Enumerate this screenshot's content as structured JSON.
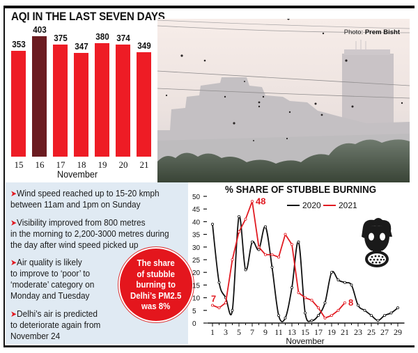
{
  "aqi_chart": {
    "title": "AQI IN THE LAST SEVEN DAYS",
    "xlabel": "November",
    "bars": [
      {
        "day": "15",
        "value": "353"
      },
      {
        "day": "16",
        "value": "403"
      },
      {
        "day": "17",
        "value": "375"
      },
      {
        "day": "18",
        "value": "347"
      },
      {
        "day": "19",
        "value": "380"
      },
      {
        "day": "20",
        "value": "374"
      },
      {
        "day": "21",
        "value": "349"
      }
    ],
    "highlight_day": "16",
    "colors": {
      "bar": "#ee1c25",
      "highlight": "#6b1b20"
    }
  },
  "photo": {
    "credit_prefix": "Photo:",
    "credit_name": "Prem Bisht"
  },
  "info": {
    "bullets": [
      "Wind speed reached up to 15-20 kmph between 11am and 1pm on Sunday",
      "Visibility improved from 800 metres in the morning to 2,200-3000 metres during the day after wind speed picked up",
      "Air quality is likely to improve to ‘poor’ to ‘moderate’ category on Monday and Tuesday",
      "Delhi’s air is predicted to deteriorate again from November 24"
    ],
    "bullet_lines": [
      [
        "Wind speed reached up to 15-20 kmph",
        "between 11am and 1pm on Sunday"
      ],
      [
        "Visibility improved from 800 metres",
        "in the morning to 2,200-3000 metres during",
        "the day after wind speed picked up"
      ],
      [
        "Air quality is likely",
        "to improve to ‘poor’ to",
        "‘moderate’ category on",
        "Monday and Tuesday"
      ],
      [
        "Delhi’s air is predicted",
        "to deteriorate again from",
        "November 24"
      ]
    ],
    "callout_lines": [
      "The share",
      "of stubble",
      "burning to",
      "Delhi’s PM2.5",
      "was 8%"
    ]
  },
  "stubble_chart": {
    "title": "% SHARE OF STUBBLE BURNING",
    "xlabel": "November",
    "legend": [
      {
        "label": "2020",
        "color": "#111111"
      },
      {
        "label": "2021",
        "color": "#e11b22"
      }
    ],
    "y_ticks": [
      "0",
      "5",
      "10",
      "15",
      "20",
      "25",
      "30",
      "35",
      "40",
      "45",
      "50"
    ],
    "x_ticks": [
      "1",
      "3",
      "5",
      "7",
      "9",
      "11",
      "13",
      "15",
      "17",
      "19",
      "21",
      "23",
      "25",
      "27",
      "29"
    ],
    "annotations": [
      {
        "text": "7",
        "series": "2021",
        "day": 1
      },
      {
        "text": "48",
        "series": "2021",
        "day": 7
      },
      {
        "text": "8",
        "series": "2021",
        "day": 21
      }
    ]
  },
  "chart_data": [
    {
      "type": "bar",
      "title": "AQI IN THE LAST SEVEN DAYS",
      "categories": [
        "15",
        "16",
        "17",
        "18",
        "19",
        "20",
        "21"
      ],
      "values": [
        353,
        403,
        375,
        347,
        380,
        374,
        349
      ],
      "xlabel": "November",
      "ylabel": "",
      "highlight": "16",
      "data_labels": true,
      "grid": false
    },
    {
      "type": "line",
      "title": "% SHARE OF STUBBLE BURNING",
      "xlabel": "November",
      "ylabel": "",
      "ylim": [
        0,
        50
      ],
      "xlim": [
        1,
        29
      ],
      "legend_position": "top",
      "grid": false,
      "series": [
        {
          "name": "2020",
          "color": "#111111",
          "x": [
            1,
            2,
            3,
            4,
            5,
            6,
            7,
            8,
            9,
            10,
            11,
            12,
            13,
            14,
            15,
            16,
            17,
            18,
            19,
            20,
            21,
            22,
            23,
            24,
            25,
            26,
            27,
            28,
            29
          ],
          "values": [
            39,
            16,
            10,
            5,
            42,
            21,
            32,
            29,
            38,
            22,
            3,
            2,
            14,
            32,
            4,
            1,
            3,
            8,
            20,
            17,
            16,
            15,
            7,
            5,
            3,
            1,
            3,
            4,
            6
          ]
        },
        {
          "name": "2021",
          "color": "#e11b22",
          "x": [
            1,
            2,
            3,
            4,
            5,
            6,
            7,
            8,
            9,
            10,
            11,
            12,
            13,
            14,
            15,
            16,
            17,
            18,
            19,
            20,
            21
          ],
          "values": [
            7,
            6,
            8,
            25,
            36,
            41,
            48,
            30,
            27,
            27,
            26,
            35,
            31,
            12,
            10,
            9,
            6,
            2,
            3,
            5,
            8
          ]
        }
      ],
      "annotations": [
        {
          "series": "2021",
          "x": 1,
          "text": "7"
        },
        {
          "series": "2021",
          "x": 7,
          "text": "48"
        },
        {
          "series": "2021",
          "x": 21,
          "text": "8"
        }
      ]
    }
  ]
}
